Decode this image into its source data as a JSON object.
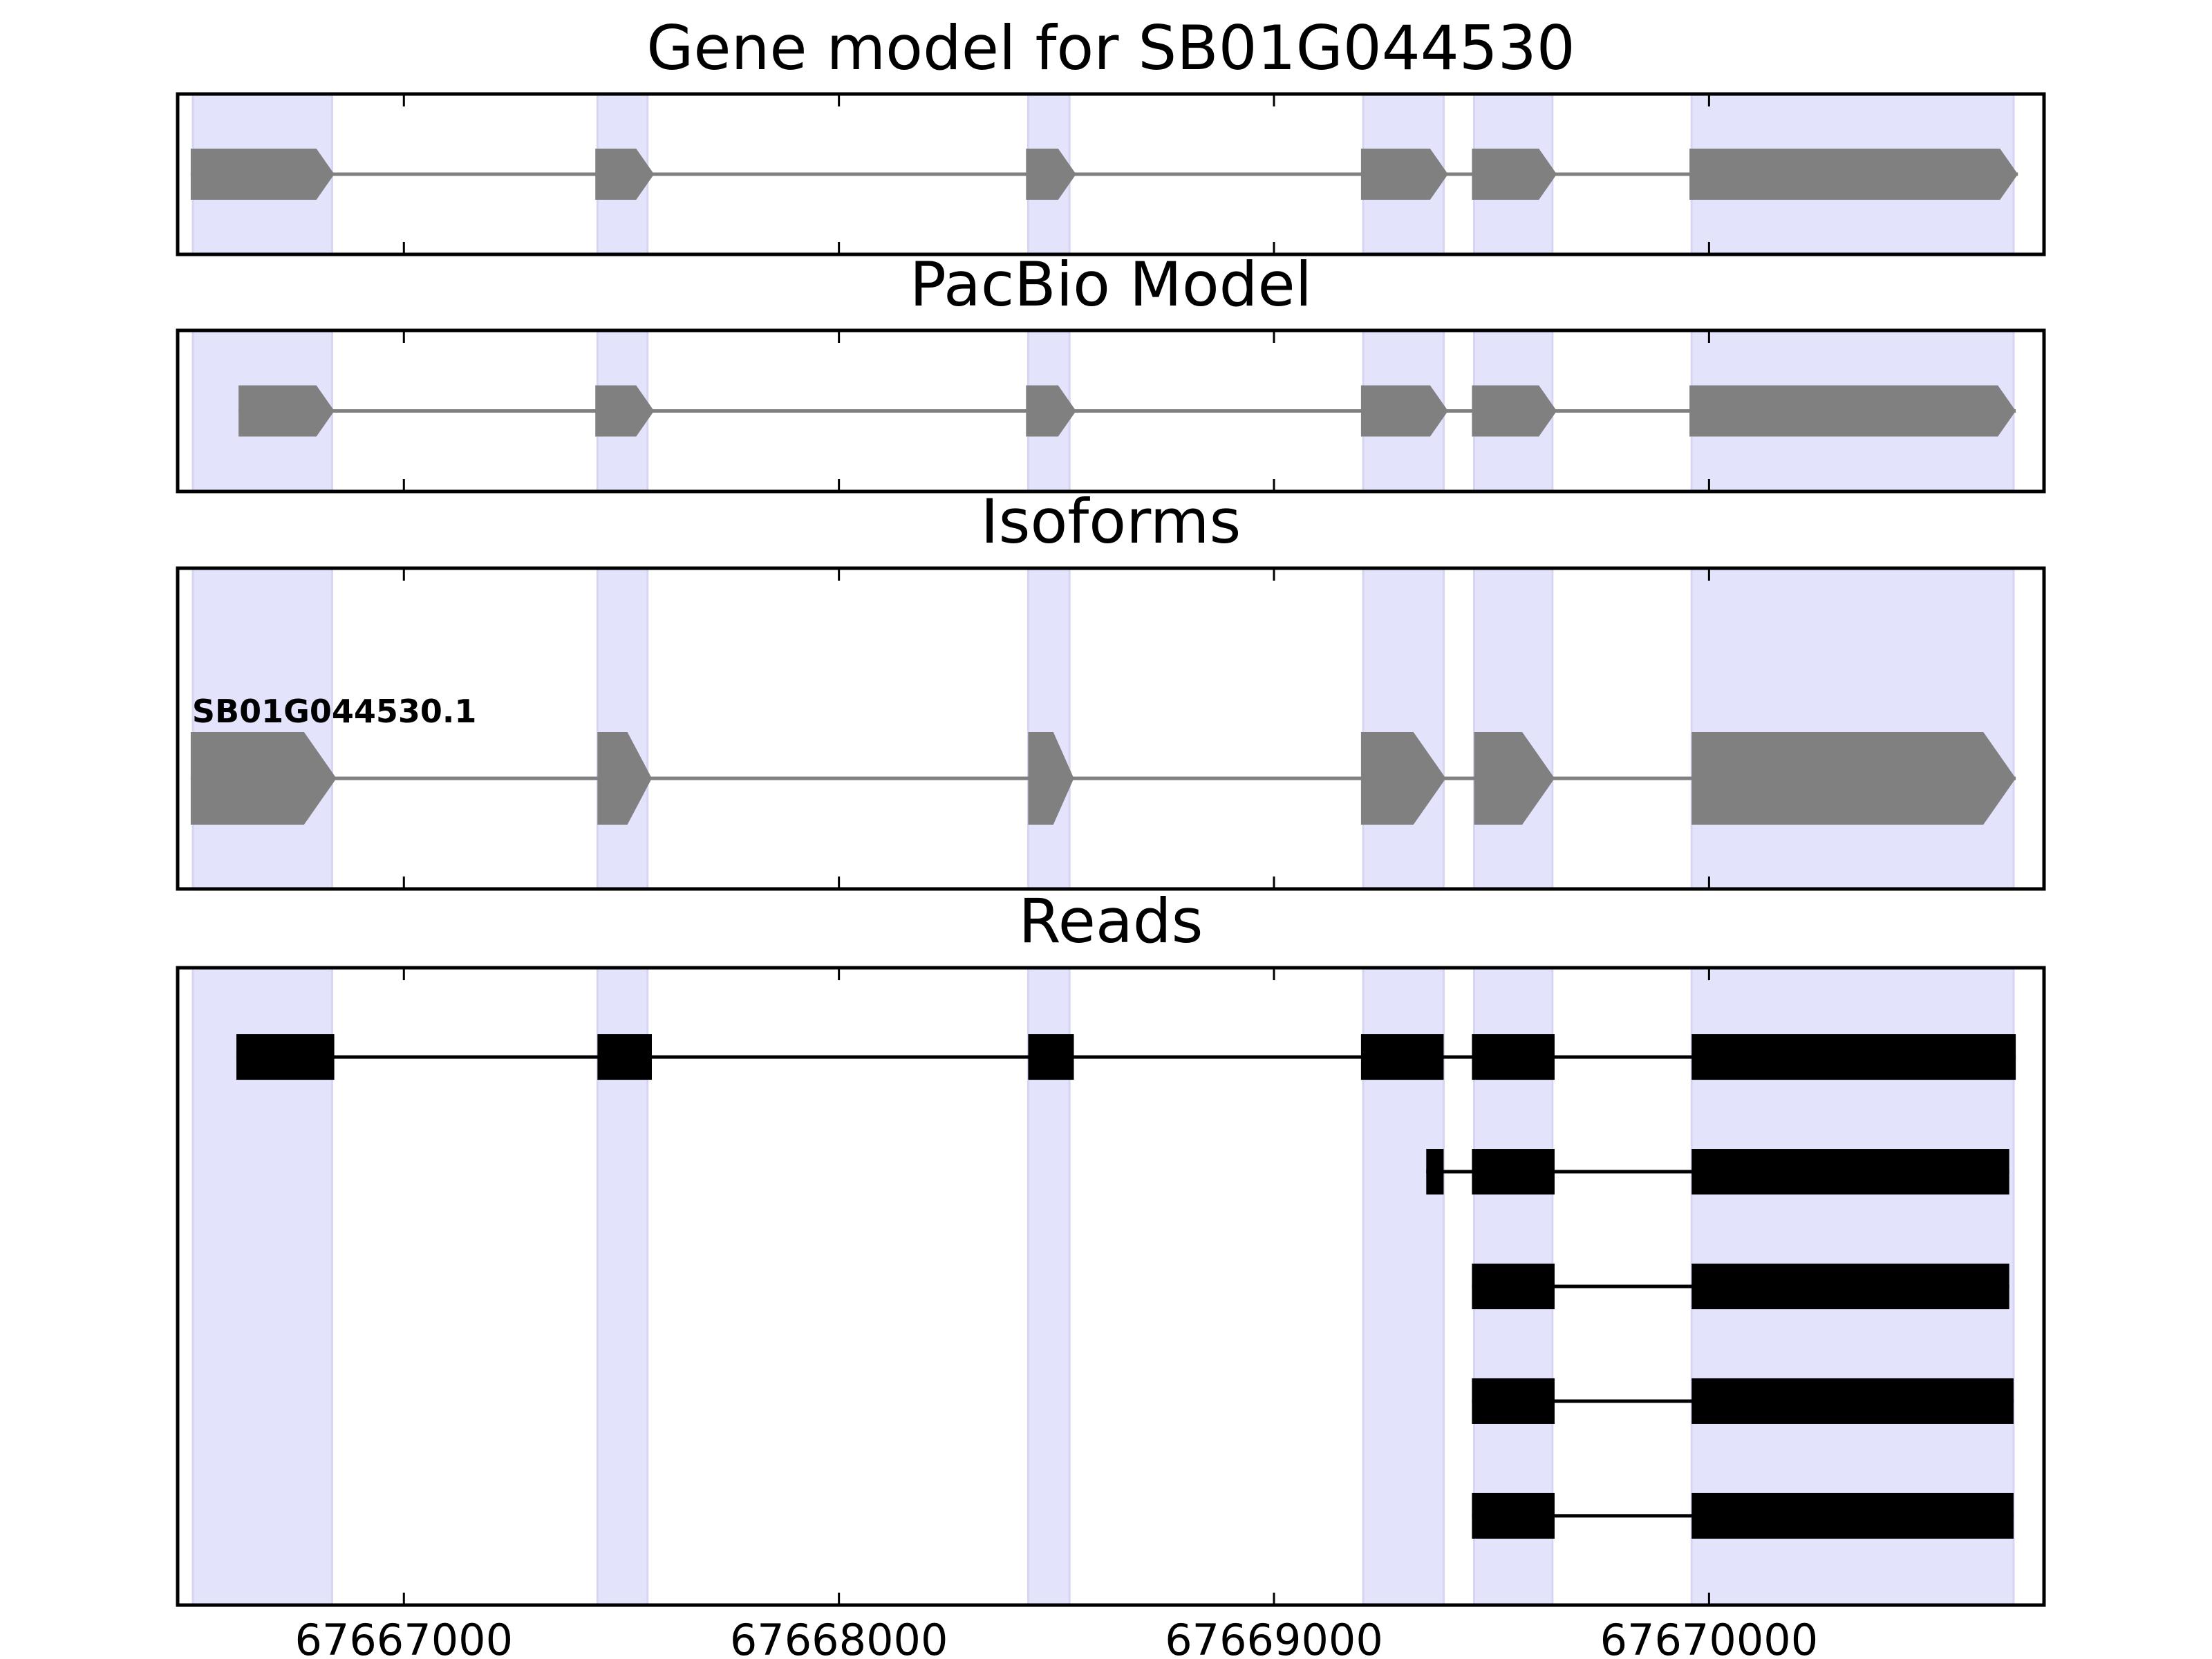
{
  "chart_data": {
    "type": "gene-model-tracks",
    "xlim": [
      67666480,
      67670770
    ],
    "x_ticks": [
      67667000,
      67668000,
      67669000,
      67670000
    ],
    "x_tick_labels": [
      "67667000",
      "67668000",
      "67669000",
      "67670000"
    ],
    "strand": "+",
    "exon_highlights": [
      [
        67666515,
        67666835
      ],
      [
        67667445,
        67667560
      ],
      [
        67668435,
        67668530
      ],
      [
        67669205,
        67669390
      ],
      [
        67669460,
        67669640
      ],
      [
        67669960,
        67670700
      ]
    ],
    "panels": [
      {
        "id": "gene_model",
        "title": "Gene model for SB01G044530",
        "style": "arrow",
        "models": [
          {
            "label": "",
            "exons": [
              [
                67666510,
                67666840
              ],
              [
                67667440,
                67667575
              ],
              [
                67668430,
                67668545
              ],
              [
                67669200,
                67669400
              ],
              [
                67669455,
                67669650
              ],
              [
                67669955,
                67670710
              ]
            ]
          }
        ]
      },
      {
        "id": "pacbio_model",
        "title": "PacBio Model",
        "style": "arrow",
        "models": [
          {
            "label": "",
            "exons": [
              [
                67666620,
                67666840
              ],
              [
                67667440,
                67667575
              ],
              [
                67668430,
                67668545
              ],
              [
                67669200,
                67669400
              ],
              [
                67669455,
                67669650
              ],
              [
                67669955,
                67670705
              ]
            ]
          }
        ]
      },
      {
        "id": "isoforms",
        "title": "Isoforms",
        "style": "arrow",
        "models": [
          {
            "label": "SB01G044530.1",
            "exons": [
              [
                67666510,
                67666845
              ],
              [
                67667445,
                67667570
              ],
              [
                67668435,
                67668540
              ],
              [
                67669200,
                67669395
              ],
              [
                67669460,
                67669645
              ],
              [
                67669960,
                67670705
              ]
            ]
          }
        ]
      },
      {
        "id": "reads",
        "title": "Reads",
        "style": "box",
        "models": [
          {
            "label": "",
            "exons": [
              [
                67666615,
                67666840
              ],
              [
                67667445,
                67667570
              ],
              [
                67668435,
                67668540
              ],
              [
                67669200,
                67669390
              ],
              [
                67669455,
                67669645
              ],
              [
                67669960,
                67670705
              ]
            ]
          },
          {
            "label": "",
            "exons": [
              [
                67669350,
                67669390
              ],
              [
                67669455,
                67669645
              ],
              [
                67669960,
                67670690
              ]
            ]
          },
          {
            "label": "",
            "exons": [
              [
                67669455,
                67669645
              ],
              [
                67669960,
                67670690
              ]
            ]
          },
          {
            "label": "",
            "exons": [
              [
                67669455,
                67669645
              ],
              [
                67669960,
                67670700
              ]
            ]
          },
          {
            "label": "",
            "exons": [
              [
                67669455,
                67669645
              ],
              [
                67669960,
                67670700
              ]
            ]
          }
        ]
      }
    ],
    "colors": {
      "highlight": "#e3e3fc",
      "highlight_edge": "#d6d6f2",
      "model_fill": "#808080",
      "model_line": "#808080",
      "read_fill": "#000000",
      "read_line": "#000000",
      "axes": "#000000"
    }
  }
}
